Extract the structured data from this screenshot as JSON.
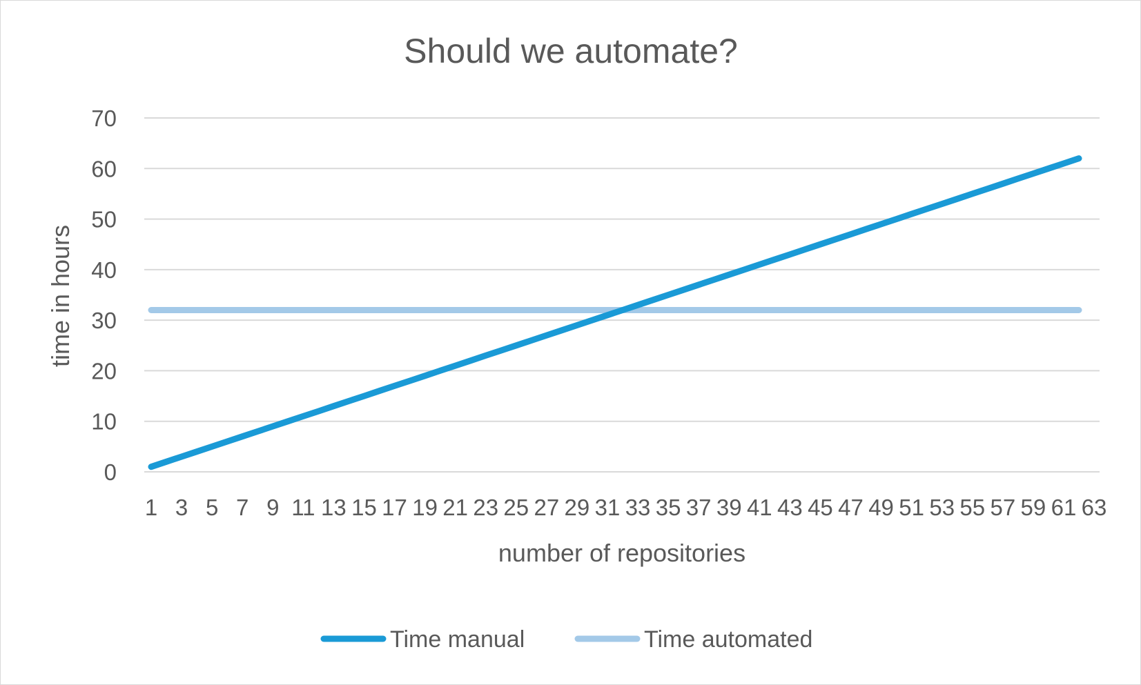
{
  "chart_data": {
    "type": "line",
    "title": "Should we automate?",
    "xlabel": "number of repositories",
    "ylabel": "time in hours",
    "x": [
      1,
      2,
      3,
      4,
      5,
      6,
      7,
      8,
      9,
      10,
      11,
      12,
      13,
      14,
      15,
      16,
      17,
      18,
      19,
      20,
      21,
      22,
      23,
      24,
      25,
      26,
      27,
      28,
      29,
      30,
      31,
      32,
      33,
      34,
      35,
      36,
      37,
      38,
      39,
      40,
      41,
      42,
      43,
      44,
      45,
      46,
      47,
      48,
      49,
      50,
      51,
      52,
      53,
      54,
      55,
      56,
      57,
      58,
      59,
      60,
      61,
      62
    ],
    "x_tick_labels": [
      "1",
      "3",
      "5",
      "7",
      "9",
      "11",
      "13",
      "15",
      "17",
      "19",
      "21",
      "23",
      "25",
      "27",
      "29",
      "31",
      "33",
      "35",
      "37",
      "39",
      "41",
      "43",
      "45",
      "47",
      "49",
      "51",
      "53",
      "55",
      "57",
      "59",
      "61",
      "63"
    ],
    "ylim": [
      0,
      70
    ],
    "y_ticks": [
      0,
      10,
      20,
      30,
      40,
      50,
      60,
      70
    ],
    "grid": true,
    "legend_position": "bottom",
    "series": [
      {
        "name": "Time manual",
        "color": "#1a9ad6",
        "values": [
          1,
          2,
          3,
          4,
          5,
          6,
          7,
          8,
          9,
          10,
          11,
          12,
          13,
          14,
          15,
          16,
          17,
          18,
          19,
          20,
          21,
          22,
          23,
          24,
          25,
          26,
          27,
          28,
          29,
          30,
          31,
          32,
          33,
          34,
          35,
          36,
          37,
          38,
          39,
          40,
          41,
          42,
          43,
          44,
          45,
          46,
          47,
          48,
          49,
          50,
          51,
          52,
          53,
          54,
          55,
          56,
          57,
          58,
          59,
          60,
          61,
          62
        ]
      },
      {
        "name": "Time automated",
        "color": "#a3c9e8",
        "values": [
          32,
          32,
          32,
          32,
          32,
          32,
          32,
          32,
          32,
          32,
          32,
          32,
          32,
          32,
          32,
          32,
          32,
          32,
          32,
          32,
          32,
          32,
          32,
          32,
          32,
          32,
          32,
          32,
          32,
          32,
          32,
          32,
          32,
          32,
          32,
          32,
          32,
          32,
          32,
          32,
          32,
          32,
          32,
          32,
          32,
          32,
          32,
          32,
          32,
          32,
          32,
          32,
          32,
          32,
          32,
          32,
          32,
          32,
          32,
          32,
          32,
          32
        ]
      }
    ]
  }
}
